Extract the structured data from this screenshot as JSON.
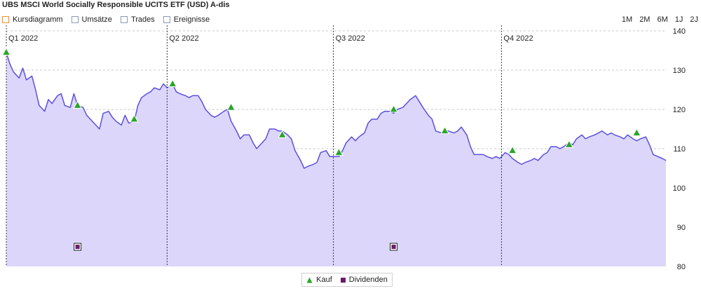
{
  "title": "UBS MSCI World Socially Responsible UCITS ETF (USD) A-dis",
  "toolbar": {
    "items": [
      {
        "label": "Kursdiagramm",
        "active": true
      },
      {
        "label": "Umsätze",
        "active": false
      },
      {
        "label": "Trades",
        "active": false
      },
      {
        "label": "Ereignisse",
        "active": false
      }
    ]
  },
  "ranges": [
    "1M",
    "2M",
    "6M",
    "1J",
    "2J"
  ],
  "colors": {
    "line": "#5b4fe0",
    "area": "#dcd7fa",
    "buy": "#2aa52a",
    "dividend": "#6a1a6a"
  },
  "chart_data": {
    "type": "area",
    "quarters": [
      "Q1 2022",
      "Q2 2022",
      "Q3 2022",
      "Q4 2022"
    ],
    "x_range": [
      "2022-01-03",
      "2022-12-30"
    ],
    "ylim": [
      80,
      140
    ],
    "yticks": [
      80,
      90,
      100,
      110,
      120,
      130,
      140
    ],
    "grid": true,
    "series": [
      {
        "name": "Kurs",
        "points": [
          [
            "2022-01-03",
            134.5
          ],
          [
            "2022-01-05",
            131.5
          ],
          [
            "2022-01-07",
            129.5
          ],
          [
            "2022-01-10",
            128
          ],
          [
            "2022-01-12",
            130.5
          ],
          [
            "2022-01-14",
            127.5
          ],
          [
            "2022-01-17",
            128.5
          ],
          [
            "2022-01-19",
            125
          ],
          [
            "2022-01-21",
            121
          ],
          [
            "2022-01-24",
            119.5
          ],
          [
            "2022-01-26",
            122.5
          ],
          [
            "2022-01-28",
            121.5
          ],
          [
            "2022-01-31",
            123.5
          ],
          [
            "2022-02-02",
            124
          ],
          [
            "2022-02-04",
            121
          ],
          [
            "2022-02-07",
            120.5
          ],
          [
            "2022-02-09",
            124
          ],
          [
            "2022-02-11",
            121
          ],
          [
            "2022-02-14",
            120.5
          ],
          [
            "2022-02-16",
            118.5
          ],
          [
            "2022-02-18",
            117.5
          ],
          [
            "2022-02-21",
            116
          ],
          [
            "2022-02-23",
            115
          ],
          [
            "2022-02-25",
            119
          ],
          [
            "2022-02-28",
            119.5
          ],
          [
            "2022-03-02",
            118
          ],
          [
            "2022-03-04",
            117
          ],
          [
            "2022-03-07",
            116
          ],
          [
            "2022-03-09",
            118.5
          ],
          [
            "2022-03-11",
            116.5
          ],
          [
            "2022-03-14",
            117
          ],
          [
            "2022-03-16",
            121
          ],
          [
            "2022-03-18",
            123
          ],
          [
            "2022-03-21",
            124
          ],
          [
            "2022-03-23",
            124.5
          ],
          [
            "2022-03-25",
            125.5
          ],
          [
            "2022-03-28",
            125
          ],
          [
            "2022-03-30",
            126.5
          ],
          [
            "2022-04-01",
            125.5
          ],
          [
            "2022-04-04",
            126.5
          ],
          [
            "2022-04-06",
            124.5
          ],
          [
            "2022-04-08",
            124
          ],
          [
            "2022-04-11",
            123.5
          ],
          [
            "2022-04-13",
            123
          ],
          [
            "2022-04-15",
            123.5
          ],
          [
            "2022-04-18",
            123.5
          ],
          [
            "2022-04-20",
            122
          ],
          [
            "2022-04-22",
            120
          ],
          [
            "2022-04-25",
            118.5
          ],
          [
            "2022-04-27",
            118
          ],
          [
            "2022-04-29",
            118.5
          ],
          [
            "2022-05-02",
            119.5
          ],
          [
            "2022-05-04",
            120
          ],
          [
            "2022-05-06",
            117
          ],
          [
            "2022-05-09",
            114.5
          ],
          [
            "2022-05-11",
            112.5
          ],
          [
            "2022-05-13",
            113.5
          ],
          [
            "2022-05-16",
            113.5
          ],
          [
            "2022-05-18",
            111.5
          ],
          [
            "2022-05-20",
            110
          ],
          [
            "2022-05-23",
            111.5
          ],
          [
            "2022-05-25",
            112.5
          ],
          [
            "2022-05-27",
            115
          ],
          [
            "2022-05-30",
            115
          ],
          [
            "2022-06-01",
            114.5
          ],
          [
            "2022-06-03",
            114.5
          ],
          [
            "2022-06-06",
            113.5
          ],
          [
            "2022-06-08",
            112.5
          ],
          [
            "2022-06-10",
            109.5
          ],
          [
            "2022-06-13",
            107
          ],
          [
            "2022-06-15",
            105
          ],
          [
            "2022-06-17",
            105.5
          ],
          [
            "2022-06-20",
            106
          ],
          [
            "2022-06-22",
            106.5
          ],
          [
            "2022-06-24",
            109
          ],
          [
            "2022-06-27",
            109.5
          ],
          [
            "2022-06-29",
            108
          ],
          [
            "2022-07-01",
            108
          ],
          [
            "2022-07-04",
            108
          ],
          [
            "2022-07-06",
            109.5
          ],
          [
            "2022-07-08",
            111.5
          ],
          [
            "2022-07-11",
            113
          ],
          [
            "2022-07-13",
            112
          ],
          [
            "2022-07-15",
            113
          ],
          [
            "2022-07-18",
            114
          ],
          [
            "2022-07-20",
            116.5
          ],
          [
            "2022-07-22",
            117.5
          ],
          [
            "2022-07-25",
            117.5
          ],
          [
            "2022-07-27",
            119
          ],
          [
            "2022-07-29",
            119.5
          ],
          [
            "2022-08-01",
            119.5
          ],
          [
            "2022-08-03",
            119
          ],
          [
            "2022-08-05",
            120
          ],
          [
            "2022-08-08",
            120.5
          ],
          [
            "2022-08-10",
            121.5
          ],
          [
            "2022-08-12",
            122.5
          ],
          [
            "2022-08-15",
            123.5
          ],
          [
            "2022-08-17",
            122
          ],
          [
            "2022-08-19",
            120.5
          ],
          [
            "2022-08-22",
            118.5
          ],
          [
            "2022-08-24",
            117.5
          ],
          [
            "2022-08-26",
            114.5
          ],
          [
            "2022-08-29",
            114
          ],
          [
            "2022-08-31",
            114.5
          ],
          [
            "2022-09-02",
            114.5
          ],
          [
            "2022-09-05",
            114
          ],
          [
            "2022-09-07",
            114.5
          ],
          [
            "2022-09-09",
            115.5
          ],
          [
            "2022-09-12",
            113.5
          ],
          [
            "2022-09-14",
            110.5
          ],
          [
            "2022-09-16",
            108.5
          ],
          [
            "2022-09-19",
            108.5
          ],
          [
            "2022-09-21",
            108.5
          ],
          [
            "2022-09-23",
            108
          ],
          [
            "2022-09-26",
            107.5
          ],
          [
            "2022-09-28",
            108
          ],
          [
            "2022-09-30",
            107.5
          ],
          [
            "2022-10-03",
            109
          ],
          [
            "2022-10-05",
            108.5
          ],
          [
            "2022-10-07",
            107.5
          ],
          [
            "2022-10-10",
            106.5
          ],
          [
            "2022-10-12",
            106
          ],
          [
            "2022-10-14",
            106.5
          ],
          [
            "2022-10-17",
            107
          ],
          [
            "2022-10-19",
            107.5
          ],
          [
            "2022-10-21",
            107
          ],
          [
            "2022-10-24",
            108.5
          ],
          [
            "2022-10-26",
            109
          ],
          [
            "2022-10-28",
            110.5
          ],
          [
            "2022-10-31",
            110.5
          ],
          [
            "2022-11-02",
            110
          ],
          [
            "2022-11-04",
            110.5
          ],
          [
            "2022-11-07",
            111.5
          ],
          [
            "2022-11-09",
            111
          ],
          [
            "2022-11-11",
            112.5
          ],
          [
            "2022-11-14",
            113.5
          ],
          [
            "2022-11-16",
            112.5
          ],
          [
            "2022-11-18",
            113
          ],
          [
            "2022-11-21",
            113.5
          ],
          [
            "2022-11-23",
            114
          ],
          [
            "2022-11-25",
            114.5
          ],
          [
            "2022-11-28",
            113.5
          ],
          [
            "2022-11-30",
            114
          ],
          [
            "2022-12-02",
            113.5
          ],
          [
            "2022-12-05",
            113
          ],
          [
            "2022-12-07",
            112.5
          ],
          [
            "2022-12-09",
            113.5
          ],
          [
            "2022-12-12",
            112.5
          ],
          [
            "2022-12-14",
            112
          ],
          [
            "2022-12-16",
            112.5
          ],
          [
            "2022-12-19",
            113
          ],
          [
            "2022-12-21",
            111
          ],
          [
            "2022-12-23",
            108.5
          ],
          [
            "2022-12-28",
            107.5
          ],
          [
            "2022-12-30",
            107
          ]
        ]
      }
    ],
    "buys": [
      [
        "2022-01-03",
        134.5
      ],
      [
        "2022-02-11",
        121
      ],
      [
        "2022-03-14",
        117.5
      ],
      [
        "2022-04-04",
        126.5
      ],
      [
        "2022-05-06",
        120.5
      ],
      [
        "2022-06-03",
        113.5
      ],
      [
        "2022-07-04",
        109
      ],
      [
        "2022-08-03",
        120
      ],
      [
        "2022-08-31",
        114.5
      ],
      [
        "2022-10-07",
        109.5
      ],
      [
        "2022-11-07",
        111
      ],
      [
        "2022-12-14",
        114
      ]
    ],
    "dividends": [
      [
        "2022-02-11",
        85
      ],
      [
        "2022-08-03",
        85
      ]
    ],
    "legend": [
      "Kauf",
      "Dividenden"
    ],
    "legend_position": "bottom-center"
  }
}
